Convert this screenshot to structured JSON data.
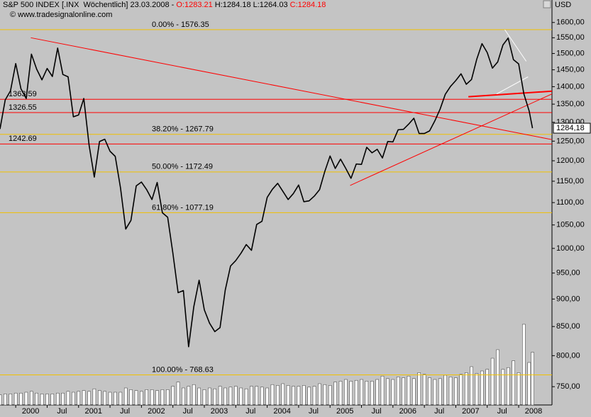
{
  "chart_data": {
    "type": "line",
    "header": [
      "S&P 500 INDEX [.INX  Wöchentlich] 23.03.2008 - ",
      "O:1283.21",
      " H:1284.18 L:1264.03 ",
      "C:1284.18"
    ],
    "header_colors": [
      "#000000",
      "#ff0000",
      "#000000",
      "#ff0000"
    ],
    "source": "© www.tradesignalonline.com",
    "y_unit": "USD",
    "last_label": "1284,18",
    "log": true,
    "xlim": [
      1999.75,
      2008.53
    ],
    "ylim": [
      722,
      1640
    ],
    "xticks": [
      2000,
      {
        "value": 2000.5,
        "label": "Jul"
      },
      2001,
      {
        "value": 2001.5,
        "label": "Jul"
      },
      2002,
      {
        "value": 2002.5,
        "label": "Jul"
      },
      2003,
      {
        "value": 2003.5,
        "label": "Jul"
      },
      2004,
      {
        "value": 2004.5,
        "label": "Jul"
      },
      2005,
      {
        "value": 2005.5,
        "label": "Jul"
      },
      2006,
      {
        "value": 2006.5,
        "label": "Jul"
      },
      2007,
      {
        "value": 2007.5,
        "label": "Jul"
      },
      2008
    ],
    "yticks": [
      {
        "value": 750,
        "label": "750,00"
      },
      {
        "value": 800,
        "label": "800,00"
      },
      {
        "value": 850,
        "label": "850,00"
      },
      {
        "value": 900,
        "label": "900,00"
      },
      {
        "value": 950,
        "label": "950,00"
      },
      {
        "value": 1000,
        "label": "1000,00"
      },
      {
        "value": 1050,
        "label": "1050,00"
      },
      {
        "value": 1100,
        "label": "1100,00"
      },
      {
        "value": 1150,
        "label": "1150,00"
      },
      {
        "value": 1200,
        "label": "1200,00"
      },
      {
        "value": 1250,
        "label": "1250,00"
      },
      {
        "value": 1300,
        "label": "1300,00"
      },
      {
        "value": 1350,
        "label": "1350,00"
      },
      {
        "value": 1400,
        "label": "1400,00"
      },
      {
        "value": 1450,
        "label": "1450,00"
      },
      {
        "value": 1500,
        "label": "1500,00"
      },
      {
        "value": 1550,
        "label": "1550,00"
      },
      {
        "value": 1600,
        "label": "1600,00"
      }
    ],
    "x": [
      1999.75,
      1999.833,
      1999.917,
      2000,
      2000.083,
      2000.167,
      2000.25,
      2000.333,
      2000.417,
      2000.5,
      2000.583,
      2000.667,
      2000.75,
      2000.833,
      2000.917,
      2001,
      2001.083,
      2001.167,
      2001.25,
      2001.333,
      2001.417,
      2001.5,
      2001.583,
      2001.667,
      2001.75,
      2001.833,
      2001.917,
      2002,
      2002.083,
      2002.167,
      2002.25,
      2002.333,
      2002.417,
      2002.5,
      2002.583,
      2002.667,
      2002.75,
      2002.833,
      2002.917,
      2003,
      2003.083,
      2003.167,
      2003.25,
      2003.333,
      2003.417,
      2003.5,
      2003.583,
      2003.667,
      2003.75,
      2003.833,
      2003.917,
      2004,
      2004.083,
      2004.167,
      2004.25,
      2004.333,
      2004.417,
      2004.5,
      2004.583,
      2004.667,
      2004.75,
      2004.833,
      2004.917,
      2005,
      2005.083,
      2005.167,
      2005.25,
      2005.333,
      2005.417,
      2005.5,
      2005.583,
      2005.667,
      2005.75,
      2005.833,
      2005.917,
      2006,
      2006.083,
      2006.167,
      2006.25,
      2006.333,
      2006.417,
      2006.5,
      2006.583,
      2006.667,
      2006.75,
      2006.833,
      2006.917,
      2007,
      2007.083,
      2007.167,
      2007.25,
      2007.333,
      2007.417,
      2007.5,
      2007.583,
      2007.667,
      2007.75,
      2007.833,
      2007.917,
      2008,
      2008.083,
      2008.167,
      2008.22
    ],
    "series": [
      {
        "color": "#000000",
        "values": [
          1282,
          1362,
          1388,
          1469,
          1394,
          1366,
          1498,
          1452,
          1420,
          1454,
          1430,
          1517,
          1436,
          1429,
          1315,
          1320,
          1366,
          1240,
          1160,
          1249,
          1255,
          1224,
          1211,
          1134,
          1041,
          1060,
          1139,
          1148,
          1130,
          1107,
          1147,
          1077,
          1067,
          990,
          912,
          916,
          815,
          886,
          936,
          880,
          856,
          841,
          848,
          917,
          964,
          975,
          990,
          1008,
          996,
          1051,
          1058,
          1112,
          1131,
          1145,
          1126,
          1107,
          1121,
          1141,
          1102,
          1104,
          1115,
          1130,
          1174,
          1212,
          1181,
          1204,
          1181,
          1157,
          1192,
          1191,
          1234,
          1220,
          1229,
          1207,
          1249,
          1248,
          1280,
          1281,
          1295,
          1311,
          1270,
          1270,
          1277,
          1304,
          1336,
          1378,
          1401,
          1418,
          1438,
          1407,
          1421,
          1482,
          1531,
          1503,
          1455,
          1474,
          1527,
          1549,
          1481,
          1468,
          1379,
          1331,
          1284.18
        ]
      }
    ],
    "volume": {
      "color": "#ffffff",
      "values": [
        12,
        13,
        13,
        14,
        14,
        15,
        16,
        14,
        13,
        13,
        13,
        14,
        14,
        16,
        15,
        16,
        17,
        16,
        19,
        17,
        16,
        15,
        15,
        15,
        20,
        18,
        17,
        16,
        18,
        18,
        17,
        18,
        18,
        22,
        27,
        20,
        22,
        24,
        20,
        18,
        20,
        19,
        22,
        20,
        21,
        22,
        20,
        19,
        22,
        22,
        21,
        20,
        24,
        23,
        25,
        23,
        22,
        22,
        23,
        21,
        22,
        25,
        24,
        23,
        27,
        28,
        30,
        28,
        29,
        30,
        28,
        28,
        30,
        34,
        31,
        30,
        33,
        32,
        34,
        31,
        38,
        36,
        32,
        30,
        31,
        35,
        33,
        32,
        36,
        38,
        45,
        37,
        40,
        42,
        55,
        65,
        42,
        44,
        52,
        38,
        95,
        50,
        62
      ]
    },
    "vlim": [
      0,
      100
    ],
    "hlines": {
      "color": "#ff0000",
      "lines": [
        {
          "value": 1363.59,
          "label": "1363.59"
        },
        {
          "value": 1326.55,
          "label": "1326.55"
        },
        {
          "value": 1242.69,
          "label": "1242.69"
        }
      ]
    },
    "fib_lines": {
      "color": "#f0c000",
      "lines": [
        {
          "value": 1576.35,
          "label": "0.00% - 1576.35"
        },
        {
          "value": 1267.79,
          "label": "38.20% - 1267.79"
        },
        {
          "value": 1172.49,
          "label": "50.00% - 1172.49"
        },
        {
          "value": 1077.19,
          "label": "61.80% - 1077.19"
        },
        {
          "value": 768.63,
          "label": "100.00% - 768.63"
        }
      ]
    },
    "trendlines": [
      {
        "color": "#ff0000",
        "width": 1,
        "x": [
          2000.24,
          2008.53
        ],
        "y": [
          1550,
          1254
        ]
      },
      {
        "color": "#ff0000",
        "width": 1,
        "x": [
          2005.32,
          2008.53
        ],
        "y": [
          1140,
          1379
        ]
      },
      {
        "color": "#ff0000",
        "width": 2,
        "x": [
          2007.2,
          2008.53
        ],
        "y": [
          1371,
          1387
        ]
      },
      {
        "color": "#ffffff",
        "width": 1,
        "x": [
          2007.78,
          2008.12
        ],
        "y": [
          1576,
          1476
        ]
      },
      {
        "color": "#ffffff",
        "width": 1,
        "x": [
          2007.65,
          2008.15
        ],
        "y": [
          1379,
          1429
        ]
      }
    ]
  }
}
